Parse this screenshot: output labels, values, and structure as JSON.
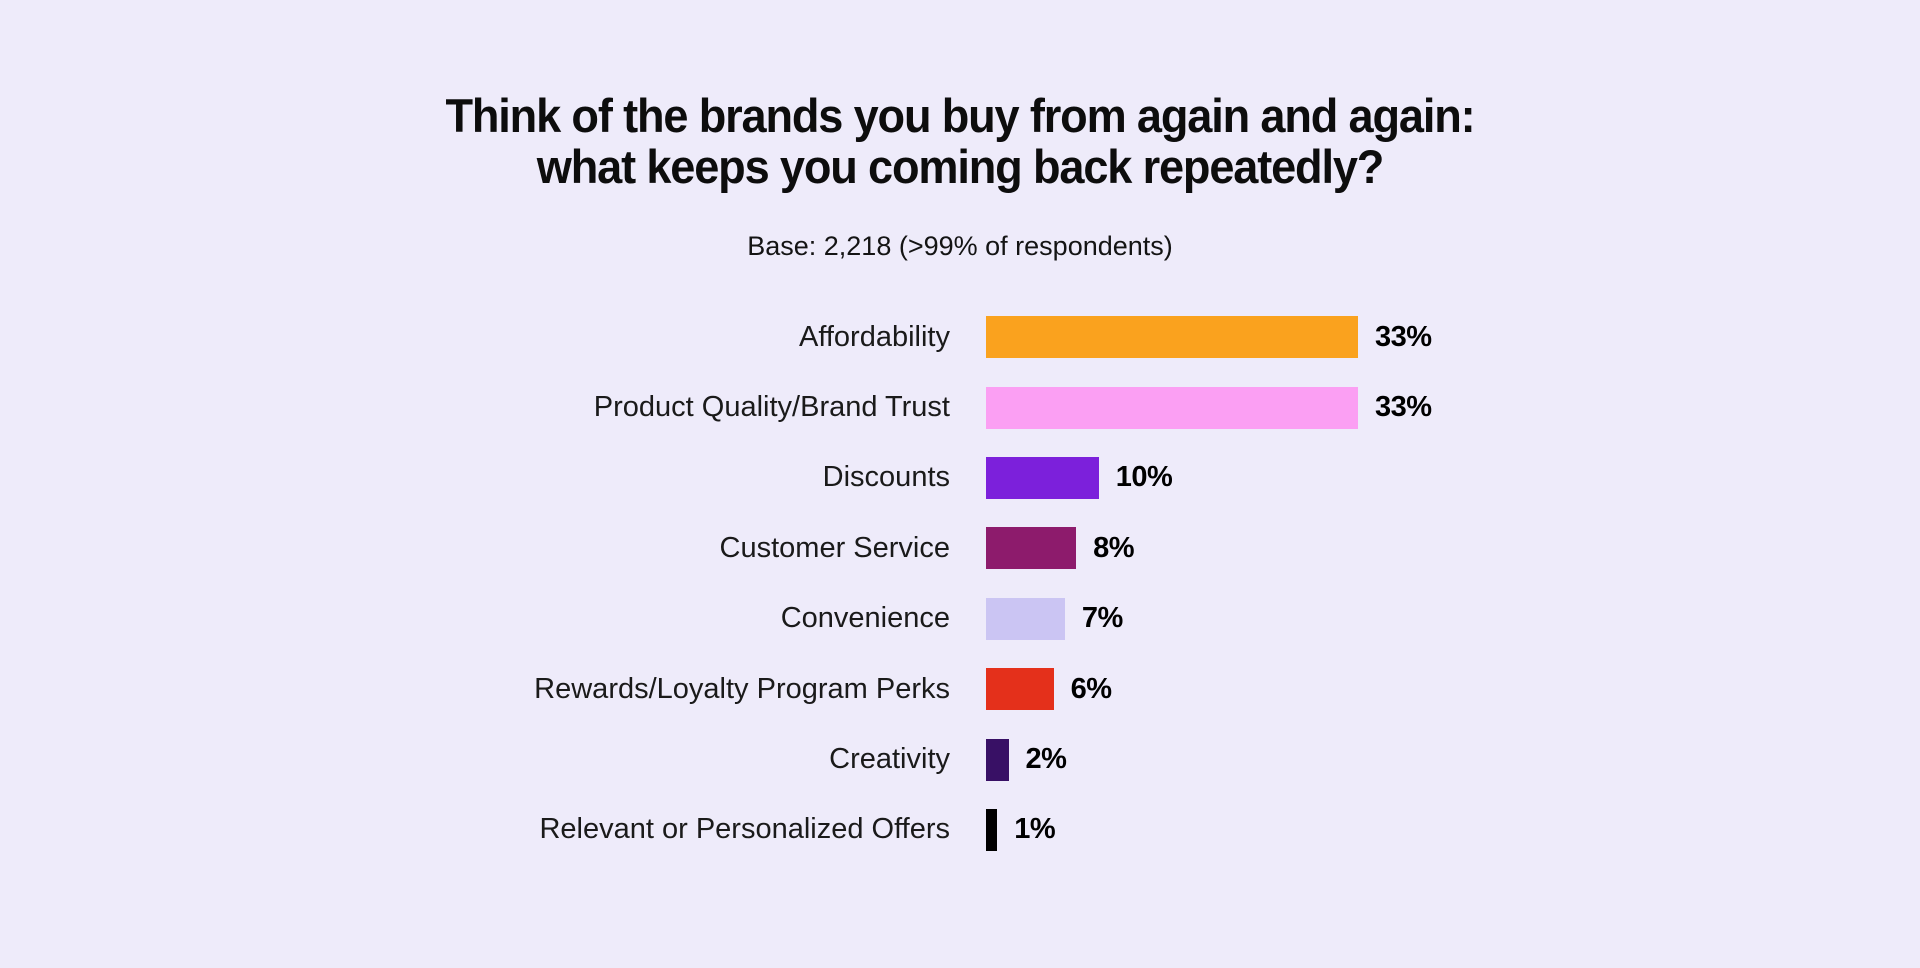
{
  "page": {
    "background": "#EEEBFA",
    "text_color": "#121212"
  },
  "chart": {
    "title_line1": "Think of the brands you buy from again and again:",
    "title_line2": "what keeps you coming back repeatedly?",
    "subtitle": "Base: 2,218 (>99% of respondents)"
  },
  "chart_data": {
    "type": "bar",
    "orientation": "horizontal",
    "title": "Think of the brands you buy from again and again: what keeps you coming back repeatedly?",
    "subtitle": "Base: 2,218 (>99% of respondents)",
    "categories": [
      "Affordability",
      "Product Quality/Brand Trust",
      "Discounts",
      "Customer Service",
      "Convenience",
      "Rewards/Loyalty Program Perks",
      "Creativity",
      "Relevant or Personalized Offers"
    ],
    "values": [
      33,
      33,
      10,
      8,
      7,
      6,
      2,
      1
    ],
    "value_labels": [
      "33%",
      "33%",
      "10%",
      "8%",
      "7%",
      "6%",
      "2%",
      "1%"
    ],
    "bar_colors": [
      "#FAA21E",
      "#FB9FF3",
      "#7C20DB",
      "#8D1B6C",
      "#CBC5F3",
      "#E4301B",
      "#381065",
      "#000000"
    ],
    "xlim": [
      0,
      33
    ],
    "grid": false,
    "category_label_position": "left-of-bar",
    "value_label_position": "right-of-bar"
  }
}
